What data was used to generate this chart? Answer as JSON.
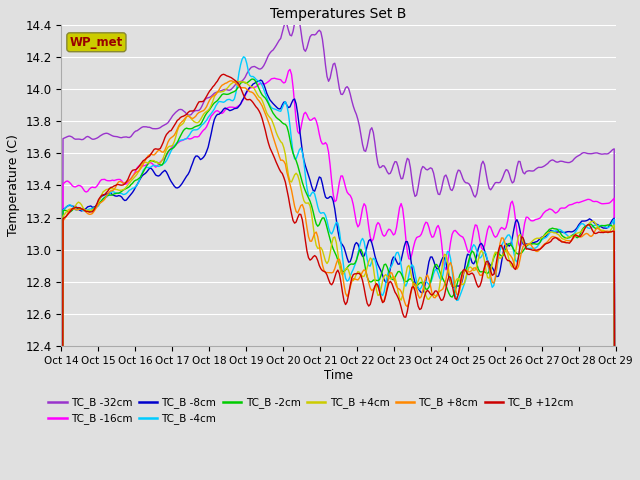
{
  "title": "Temperatures Set B",
  "xlabel": "Time",
  "ylabel": "Temperature (C)",
  "ylim": [
    12.4,
    14.4
  ],
  "xlim": [
    0,
    360
  ],
  "xtick_labels": [
    "Oct 14",
    "Oct 15",
    "Oct 16",
    "Oct 17",
    "Oct 18",
    "Oct 19",
    "Oct 20",
    "Oct 21",
    "Oct 22",
    "Oct 23",
    "Oct 24",
    "Oct 25",
    "Oct 26",
    "Oct 27",
    "Oct 28",
    "Oct 29"
  ],
  "ytick_values": [
    12.4,
    12.6,
    12.8,
    13.0,
    13.2,
    13.4,
    13.6,
    13.8,
    14.0,
    14.2,
    14.4
  ],
  "series": [
    {
      "label": "TC_B -32cm",
      "color": "#9933cc"
    },
    {
      "label": "TC_B -16cm",
      "color": "#ff00ff"
    },
    {
      "label": "TC_B -8cm",
      "color": "#0000cc"
    },
    {
      "label": "TC_B -4cm",
      "color": "#00ccff"
    },
    {
      "label": "TC_B -2cm",
      "color": "#00cc00"
    },
    {
      "label": "TC_B +4cm",
      "color": "#cccc00"
    },
    {
      "label": "TC_B +8cm",
      "color": "#ff8800"
    },
    {
      "label": "TC_B +12cm",
      "color": "#cc0000"
    }
  ],
  "wp_met_box_color": "#cccc00",
  "wp_met_text_color": "#990000",
  "bg_color": "#e0e0e0",
  "plot_bg_color": "#e0e0e0",
  "grid_color": "#ffffff",
  "figsize": [
    6.4,
    4.8
  ],
  "dpi": 100
}
